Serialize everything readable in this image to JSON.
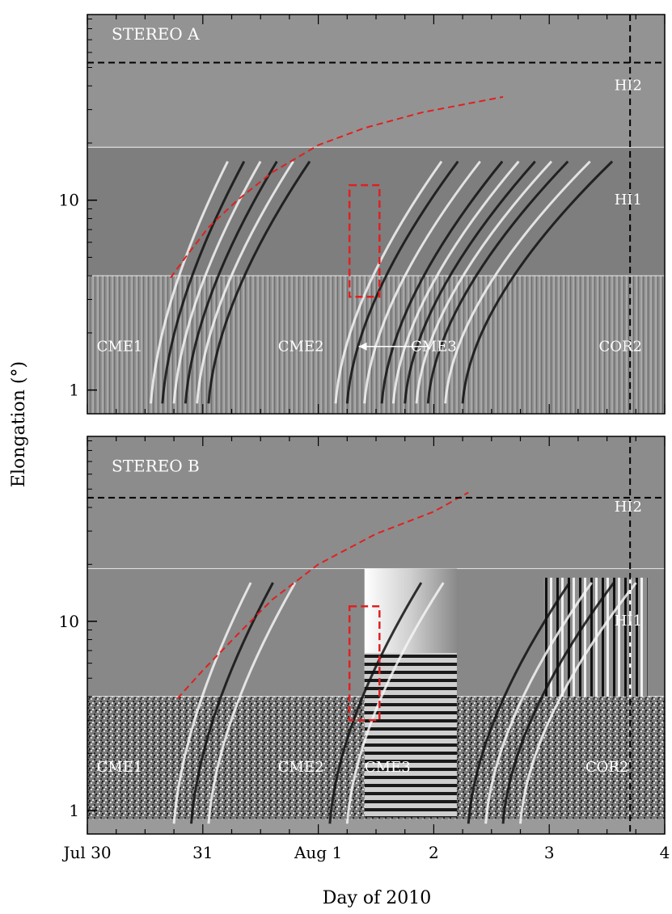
{
  "chart_data": {
    "type": "heatmap",
    "description_units": "time-elongation map (J-map)",
    "xlabel": "Day of 2010",
    "ylabel": "Elongation (°)",
    "x_ticks": [
      {
        "day": 0,
        "label": "Jul 30"
      },
      {
        "day": 1,
        "label": "31"
      },
      {
        "day": 2,
        "label": "Aug 1"
      },
      {
        "day": 3,
        "label": "2"
      },
      {
        "day": 4,
        "label": "3"
      },
      {
        "day": 5,
        "label": "4"
      }
    ],
    "xlim_days": [
      0,
      5
    ],
    "y_scale": "log",
    "y_ticks": [
      1,
      10
    ],
    "ylim": [
      0.75,
      95
    ],
    "vertical_marker_day": 4.7,
    "panels": [
      {
        "id": "A",
        "title": "STEREO A",
        "instruments": [
          {
            "name": "HI2",
            "range": [
              19,
              95
            ]
          },
          {
            "name": "HI1",
            "range": [
              4,
              19
            ]
          },
          {
            "name": "COR2",
            "range": [
              0.75,
              4
            ]
          }
        ],
        "hline": 53,
        "cme_labels": [
          {
            "text": "CME1",
            "day": 0.28,
            "elong": 1.6
          },
          {
            "text": "CME2",
            "day": 1.85,
            "elong": 1.6
          },
          {
            "text": "CME3",
            "day": 3.0,
            "elong": 1.6
          }
        ],
        "arrow": {
          "from_day": 2.95,
          "to_day": 2.35,
          "elong": 1.6
        },
        "fit_curve": [
          {
            "day": 0.72,
            "elong": 3.9
          },
          {
            "day": 0.85,
            "elong": 5.0
          },
          {
            "day": 1.05,
            "elong": 7.2
          },
          {
            "day": 1.3,
            "elong": 10
          },
          {
            "day": 1.6,
            "elong": 14
          },
          {
            "day": 2.0,
            "elong": 19.5
          },
          {
            "day": 2.4,
            "elong": 24
          },
          {
            "day": 2.9,
            "elong": 29
          },
          {
            "day": 3.6,
            "elong": 35
          }
        ],
        "box": {
          "day0": 2.27,
          "day1": 2.53,
          "elong0": 3.1,
          "elong1": 12
        },
        "tracks_days": [
          0.55,
          0.65,
          0.75,
          0.85,
          0.95,
          1.05,
          2.15,
          2.25,
          2.4,
          2.55,
          2.65,
          2.75,
          2.85,
          2.95,
          3.1,
          3.25
        ]
      },
      {
        "id": "B",
        "title": "STEREO B",
        "instruments": [
          {
            "name": "HI2",
            "range": [
              19,
              95
            ]
          },
          {
            "name": "HI1",
            "range": [
              4,
              19
            ]
          },
          {
            "name": "COR2",
            "range": [
              0.75,
              4
            ]
          }
        ],
        "hline": 45,
        "cme_labels": [
          {
            "text": "CME1",
            "day": 0.28,
            "elong": 1.6
          },
          {
            "text": "CME2",
            "day": 1.85,
            "elong": 1.6
          },
          {
            "text": "CME3",
            "day": 2.6,
            "elong": 1.6
          },
          {
            "text": "COR2",
            "day": 4.5,
            "elong": 1.6
          }
        ],
        "fit_curve": [
          {
            "day": 0.78,
            "elong": 3.9
          },
          {
            "day": 1.0,
            "elong": 5.5
          },
          {
            "day": 1.3,
            "elong": 8.5
          },
          {
            "day": 1.6,
            "elong": 13
          },
          {
            "day": 2.0,
            "elong": 20
          },
          {
            "day": 2.5,
            "elong": 29
          },
          {
            "day": 3.0,
            "elong": 38
          },
          {
            "day": 3.3,
            "elong": 48
          }
        ],
        "box": {
          "day0": 2.27,
          "day1": 2.53,
          "elong0": 3.0,
          "elong1": 12
        },
        "tracks_days": [
          0.75,
          0.9,
          1.05,
          2.1,
          2.25,
          3.3,
          3.45,
          3.6,
          3.75
        ]
      }
    ]
  }
}
